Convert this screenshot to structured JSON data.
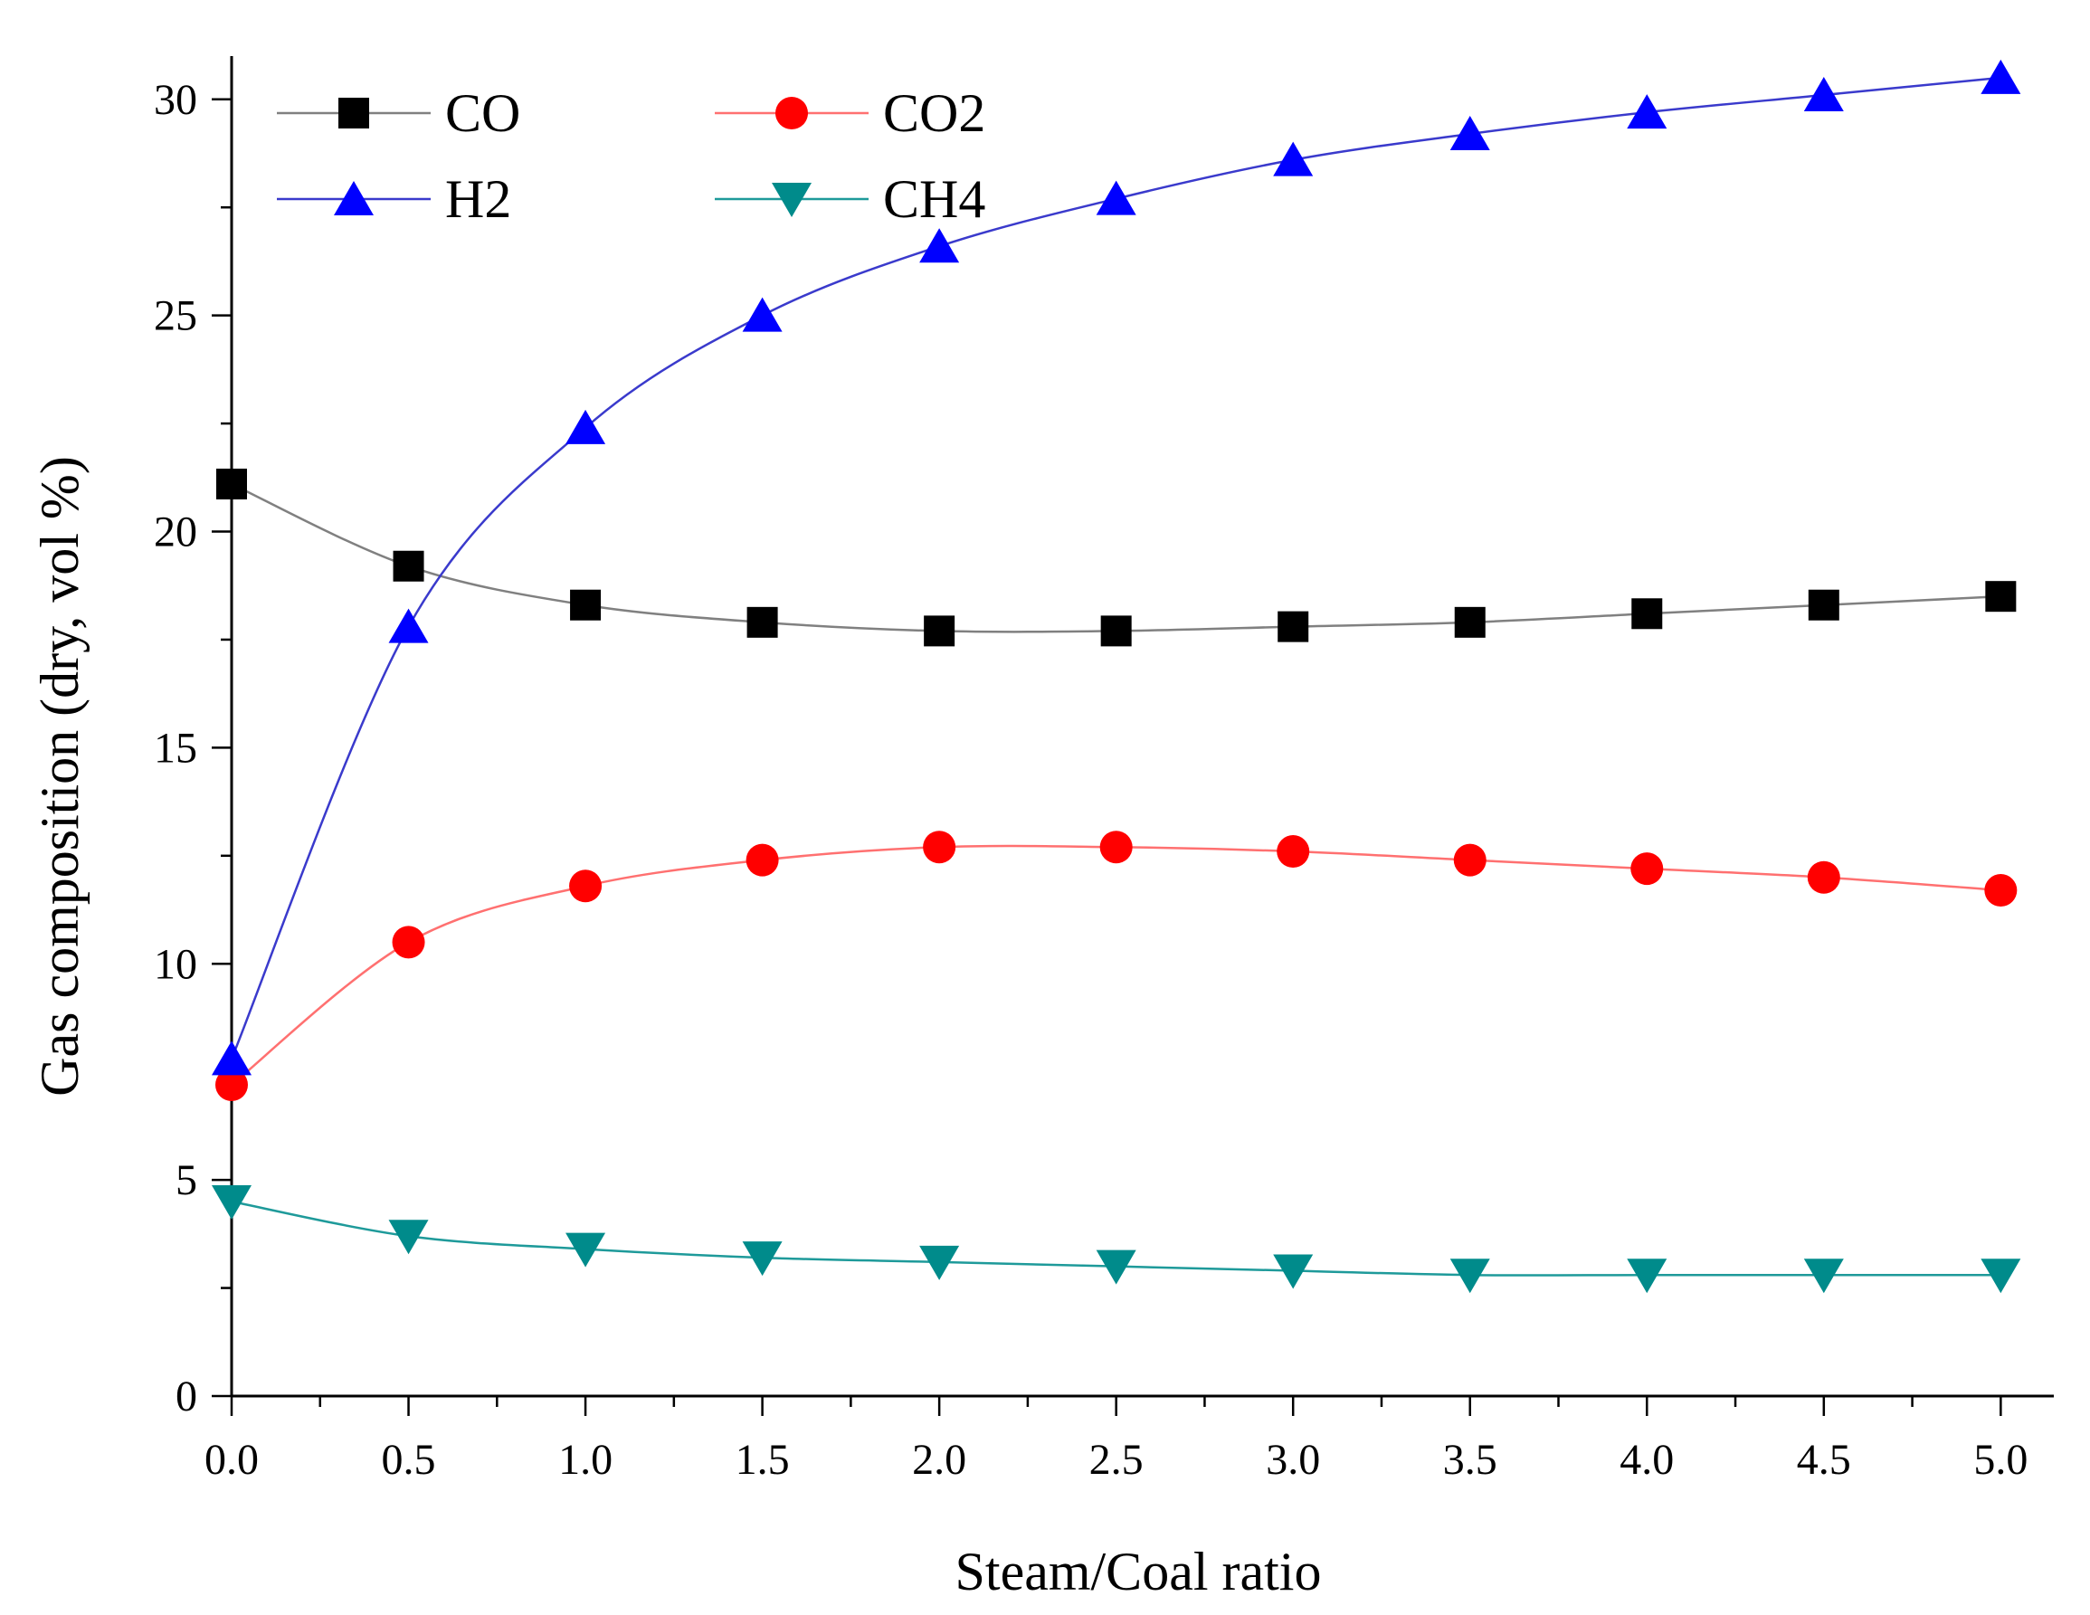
{
  "chart_data": {
    "type": "line",
    "title": "",
    "xlabel": "Steam/Coal ratio",
    "ylabel": "Gas composition (dry, vol %)",
    "xlim": [
      0,
      5.15
    ],
    "ylim": [
      0,
      31
    ],
    "x": [
      0.0,
      0.5,
      1.0,
      1.5,
      2.0,
      2.5,
      3.0,
      3.5,
      4.0,
      4.5,
      5.0
    ],
    "xticks": [
      "0.0",
      "0.5",
      "1.0",
      "1.5",
      "2.0",
      "2.5",
      "3.0",
      "3.5",
      "4.0",
      "4.5",
      "5.0"
    ],
    "yticks": [
      "0",
      "5",
      "10",
      "15",
      "20",
      "25",
      "30"
    ],
    "legend_position": "top-left",
    "series": [
      {
        "name": "CO",
        "marker": "square",
        "color": "#000000",
        "line_color": "#808080",
        "values": [
          21.1,
          19.2,
          18.3,
          17.9,
          17.7,
          17.7,
          17.8,
          17.9,
          18.1,
          18.3,
          18.5
        ]
      },
      {
        "name": "CO2",
        "marker": "circle",
        "color": "#ff0000",
        "line_color": "#ff7070",
        "values": [
          7.2,
          10.5,
          11.8,
          12.4,
          12.7,
          12.7,
          12.6,
          12.4,
          12.2,
          12.0,
          11.7
        ]
      },
      {
        "name": "H2",
        "marker": "triangle-up",
        "color": "#0000ff",
        "line_color": "#3a3acc",
        "values": [
          7.8,
          17.8,
          22.4,
          25.0,
          26.6,
          27.7,
          28.6,
          29.2,
          29.7,
          30.1,
          30.5
        ]
      },
      {
        "name": "CH4",
        "marker": "triangle-down",
        "color": "#008b8b",
        "line_color": "#1e9a9a",
        "values": [
          4.5,
          3.7,
          3.4,
          3.2,
          3.1,
          3.0,
          2.9,
          2.8,
          2.8,
          2.8,
          2.8
        ]
      }
    ]
  }
}
